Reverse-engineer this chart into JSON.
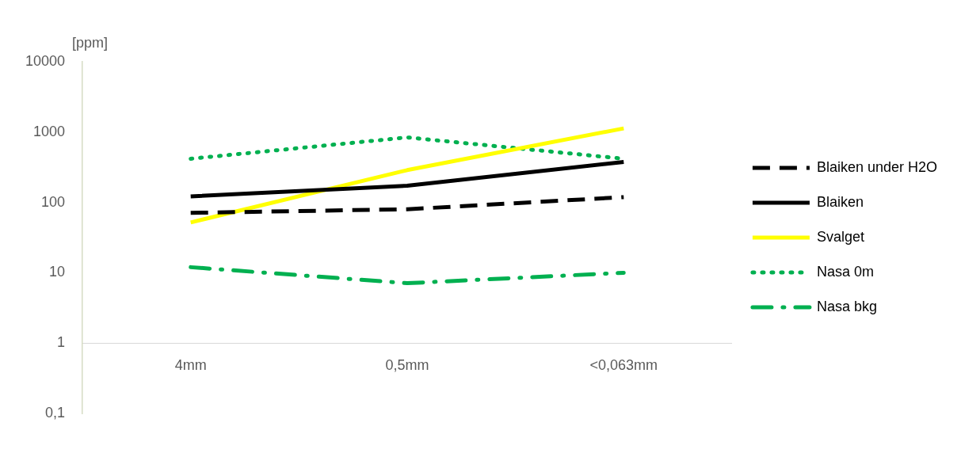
{
  "chart_data": {
    "type": "line",
    "ylabel": "[ppm]",
    "categories": [
      "4mm",
      "0,5mm",
      "<0,063mm"
    ],
    "series": [
      {
        "name": "Blaiken under H2O",
        "color": "#000000",
        "values": [
          71,
          80,
          119
        ],
        "line_style": "dashed"
      },
      {
        "name": "Blaiken",
        "color": "#000000",
        "values": [
          122,
          173,
          377
        ],
        "line_style": "solid"
      },
      {
        "name": "Svalget",
        "color": "#ffff00",
        "values": [
          52,
          288,
          1130
        ],
        "line_style": "solid"
      },
      {
        "name": "Nasa 0m",
        "color": "#00b050",
        "values": [
          418,
          840,
          418
        ],
        "line_style": "dotted"
      },
      {
        "name": "Nasa bkg",
        "color": "#00b050",
        "values": [
          12,
          7.1,
          10
        ],
        "line_style": "dashdot"
      }
    ],
    "log": "y",
    "ylim": [
      0.1,
      10000
    ],
    "yticks": [
      {
        "value": 0.1,
        "label": "0,1"
      },
      1,
      10,
      100,
      1000,
      10000
    ],
    "grid": false,
    "legend": "right",
    "marker": "none"
  }
}
